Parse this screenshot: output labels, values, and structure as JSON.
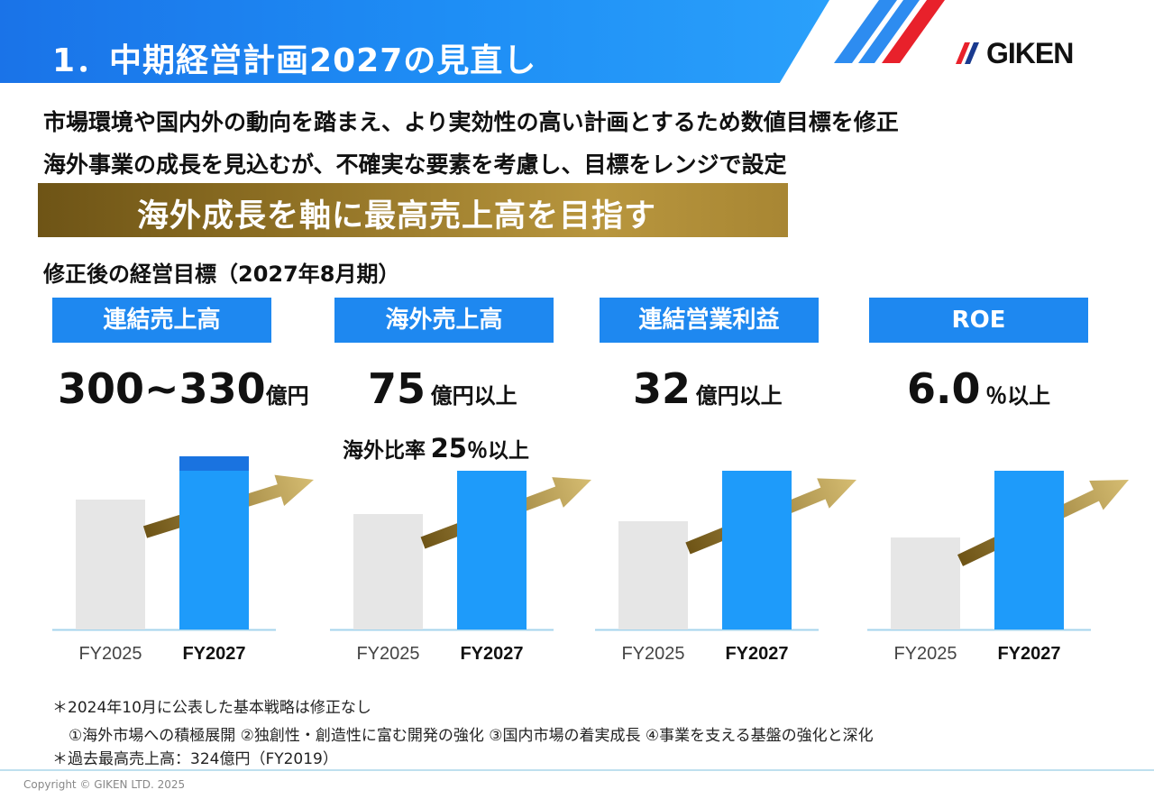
{
  "header": {
    "title": "1．中期経営計画2027の見直し",
    "logo_text": "GIKEN"
  },
  "lead": [
    "市場環境や国内外の動向を踏まえ、より実効性の高い計画とするため数値目標を修正",
    "海外事業の成長を見込むが、不確実な要素を考慮し、目標をレンジで設定"
  ],
  "banner": {
    "text": "海外成長を軸に最高売上高を目指す"
  },
  "targets_title": "修正後の経営目標（2027年8月期）",
  "kpis": [
    {
      "name": "連結売上高",
      "value": "300~330",
      "unit": "億円"
    },
    {
      "name": "海外売上高",
      "value": "75",
      "unit": "億円以上"
    },
    {
      "name": "連結営業利益",
      "value": "32",
      "unit": "億円以上"
    },
    {
      "name": "ROE",
      "value": "6.0",
      "unit": "％以上"
    }
  ],
  "overseas_ratio": {
    "label": "海外比率",
    "value": "25",
    "unit": "％以上"
  },
  "chart_data": [
    {
      "type": "bar",
      "title": "連結売上高",
      "categories": [
        "FY2025",
        "FY2027"
      ],
      "values": [
        0.72,
        0.88
      ],
      "range_top": 0.96,
      "ylim": [
        0,
        1
      ],
      "trend_arrow": true
    },
    {
      "type": "bar",
      "title": "海外売上高",
      "categories": [
        "FY2025",
        "FY2027"
      ],
      "values": [
        0.64,
        0.88
      ],
      "ylim": [
        0,
        1
      ],
      "trend_arrow": true
    },
    {
      "type": "bar",
      "title": "連結営業利益",
      "categories": [
        "FY2025",
        "FY2027"
      ],
      "values": [
        0.6,
        0.88
      ],
      "ylim": [
        0,
        1
      ],
      "trend_arrow": true
    },
    {
      "type": "bar",
      "title": "ROE",
      "categories": [
        "FY2025",
        "FY2027"
      ],
      "values": [
        0.51,
        0.88
      ],
      "ylim": [
        0,
        1
      ],
      "trend_arrow": true
    }
  ],
  "notes": [
    "＊2024年10月に公表した基本戦略は修正なし",
    "①海外市場への積極展開 ②独創性・創造性に富む開発の強化 ③国内市場の着実成長 ④事業を支える基盤の強化と深化",
    "＊過去最高売上高：324億円（FY2019）"
  ],
  "footer": {
    "copyright": "Copyright © GIKEN LTD. 2025"
  },
  "colors": {
    "accent_blue": "#1e88f0",
    "bar_fy2027": "#1e9bfa",
    "bar_fy2025": "#e6e6e6",
    "gold": "#b8963e"
  }
}
